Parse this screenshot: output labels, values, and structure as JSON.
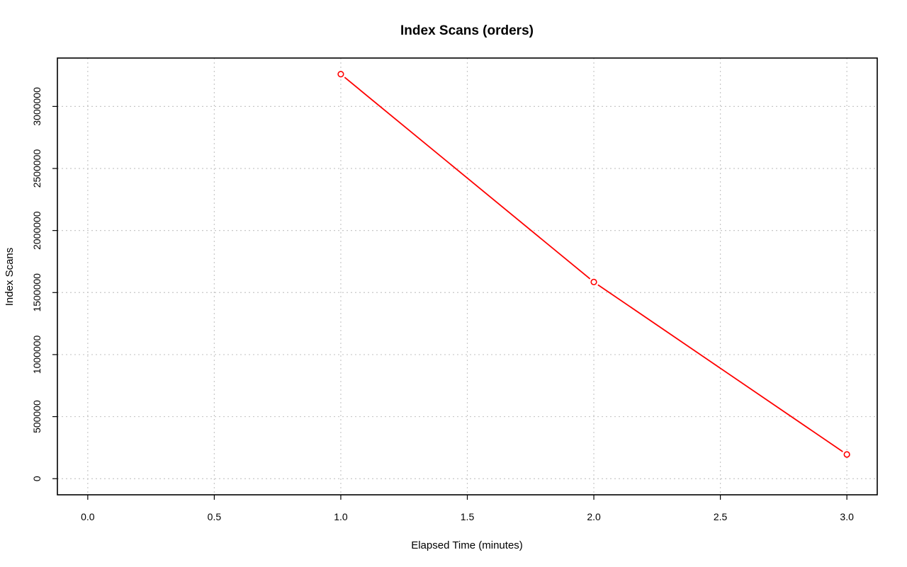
{
  "chart_data": {
    "type": "line",
    "title": "Index Scans (orders)",
    "xlabel": "Elapsed Time (minutes)",
    "ylabel": "Index Scans",
    "xlim": [
      -0.12,
      3.12
    ],
    "ylim": [
      -130000,
      3390000
    ],
    "x_ticks": [
      0.0,
      0.5,
      1.0,
      1.5,
      2.0,
      2.5,
      3.0
    ],
    "x_tick_labels": [
      "0.0",
      "0.5",
      "1.0",
      "1.5",
      "2.0",
      "2.5",
      "3.0"
    ],
    "y_ticks": [
      0,
      500000,
      1000000,
      1500000,
      2000000,
      2500000,
      3000000
    ],
    "y_tick_labels": [
      "0",
      "500000",
      "1000000",
      "1500000",
      "2000000",
      "2500000",
      "3000000"
    ],
    "grid": true,
    "series": [
      {
        "color": "#ff0000",
        "x": [
          1.0,
          2.0,
          3.0
        ],
        "y": [
          3260000,
          1585000,
          195000
        ]
      }
    ]
  }
}
